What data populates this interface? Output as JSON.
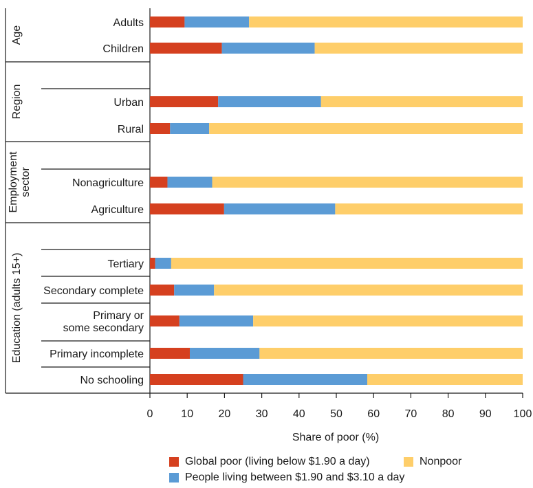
{
  "colors": {
    "global_poor": "#d5401f",
    "between": "#5b9bd5",
    "nonpoor": "#fece6a",
    "lines": "#1a1a1a"
  },
  "legend": {
    "global_poor": "Global poor (living below $1.90 a day)",
    "between": "People living between $1.90 and $3.10 a day",
    "nonpoor": "Nonpoor"
  },
  "chart_data": {
    "type": "bar",
    "orientation": "horizontal",
    "stacked": true,
    "xlabel": "Share of poor (%)",
    "xlim": [
      0,
      100
    ],
    "xticks": [
      0,
      10,
      20,
      30,
      40,
      50,
      60,
      70,
      80,
      90,
      100
    ],
    "grid": false,
    "legend_position": "bottom",
    "groups": [
      {
        "name": "Age",
        "categories": [
          "Adults",
          "Children"
        ]
      },
      {
        "name": "Region",
        "categories": [
          "Urban",
          "Rural"
        ]
      },
      {
        "name": "Employment sector",
        "categories": [
          "Nonagriculture",
          "Agriculture"
        ]
      },
      {
        "name": "Education (adults 15+)",
        "categories": [
          "Tertiary",
          "Secondary complete",
          "Primary or some secondary",
          "Primary incomplete",
          "No schooling"
        ]
      }
    ],
    "categories": [
      "Adults",
      "Children",
      "Urban",
      "Rural",
      "Nonagriculture",
      "Agriculture",
      "Tertiary",
      "Secondary complete",
      "Primary or some secondary",
      "Primary incomplete",
      "No schooling"
    ],
    "series": [
      {
        "name": "Global poor (living below $1.90 a day)",
        "values": [
          9.3,
          19.3,
          18.3,
          5.4,
          4.7,
          19.9,
          1.4,
          6.5,
          7.9,
          10.7,
          25.0
        ]
      },
      {
        "name": "People living between $1.90 and $3.10 a day",
        "values": [
          17.3,
          24.9,
          27.6,
          10.5,
          12.0,
          29.8,
          4.3,
          10.7,
          19.8,
          18.7,
          33.3
        ]
      },
      {
        "name": "Nonpoor",
        "values": [
          73.4,
          55.8,
          54.1,
          84.1,
          83.3,
          50.3,
          94.3,
          82.8,
          72.3,
          70.6,
          41.7
        ]
      }
    ]
  }
}
